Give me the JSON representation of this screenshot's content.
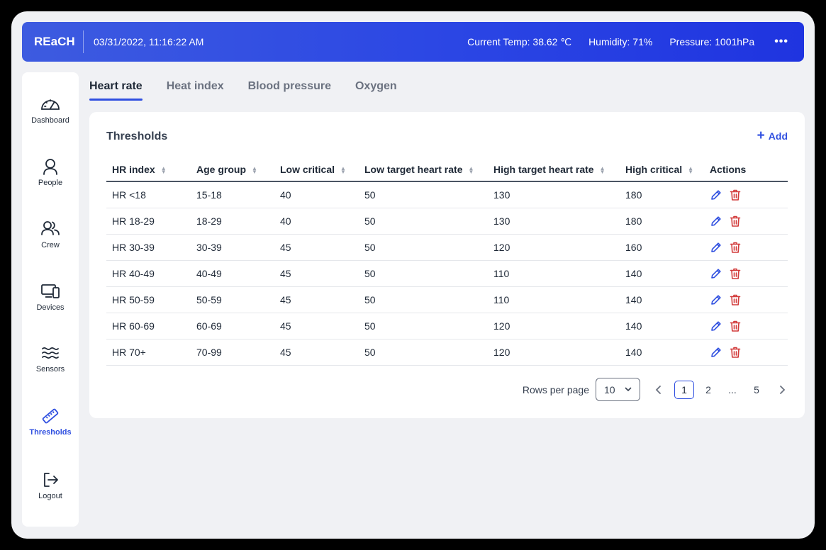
{
  "header": {
    "brand": "REaCH",
    "datetime": "03/31/2022, 11:16:22 AM",
    "temp": "Current Temp: 38.62 ℃",
    "humidity": "Humidity: 71%",
    "pressure": "Pressure: 1001hPa",
    "more_icon": "ellipsis-icon"
  },
  "sidebar": {
    "items": [
      {
        "label": "Dashboard",
        "icon": "gauge-icon"
      },
      {
        "label": "People",
        "icon": "person-icon"
      },
      {
        "label": "Crew",
        "icon": "group-icon"
      },
      {
        "label": "Devices",
        "icon": "devices-icon"
      },
      {
        "label": "Sensors",
        "icon": "waves-icon"
      },
      {
        "label": "Thresholds",
        "icon": "ruler-icon"
      },
      {
        "label": "Logout",
        "icon": "logout-icon"
      }
    ],
    "active": "Thresholds"
  },
  "tabs": [
    {
      "label": "Heart rate"
    },
    {
      "label": "Heat index"
    },
    {
      "label": "Blood pressure"
    },
    {
      "label": "Oxygen"
    }
  ],
  "card": {
    "title": "Thresholds",
    "add_label": "Add"
  },
  "table": {
    "headers": [
      "HR index",
      "Age group",
      "Low critical",
      "Low target heart rate",
      "High target heart rate",
      "High critical",
      "Actions"
    ],
    "rows": [
      [
        "HR <18",
        "15-18",
        "40",
        "50",
        "130",
        "180"
      ],
      [
        "HR 18-29",
        "18-29",
        "40",
        "50",
        "130",
        "180"
      ],
      [
        "HR 30-39",
        "30-39",
        "45",
        "50",
        "120",
        "160"
      ],
      [
        "HR 40-49",
        "40-49",
        "45",
        "50",
        "110",
        "140"
      ],
      [
        "HR 50-59",
        "50-59",
        "45",
        "50",
        "110",
        "140"
      ],
      [
        "HR 60-69",
        "60-69",
        "45",
        "50",
        "120",
        "140"
      ],
      [
        "HR 70+",
        "70-99",
        "45",
        "50",
        "120",
        "140"
      ]
    ]
  },
  "pagination": {
    "rows_per_page_label": "Rows per page",
    "rows_per_page": "10",
    "pages": [
      "1",
      "2",
      "...",
      "5"
    ],
    "current": "1"
  },
  "colors": {
    "accent": "#2f4fe0",
    "danger": "#d23b3b",
    "header_gradient_start": "#3d5be0",
    "header_gradient_end": "#1f34e0"
  }
}
